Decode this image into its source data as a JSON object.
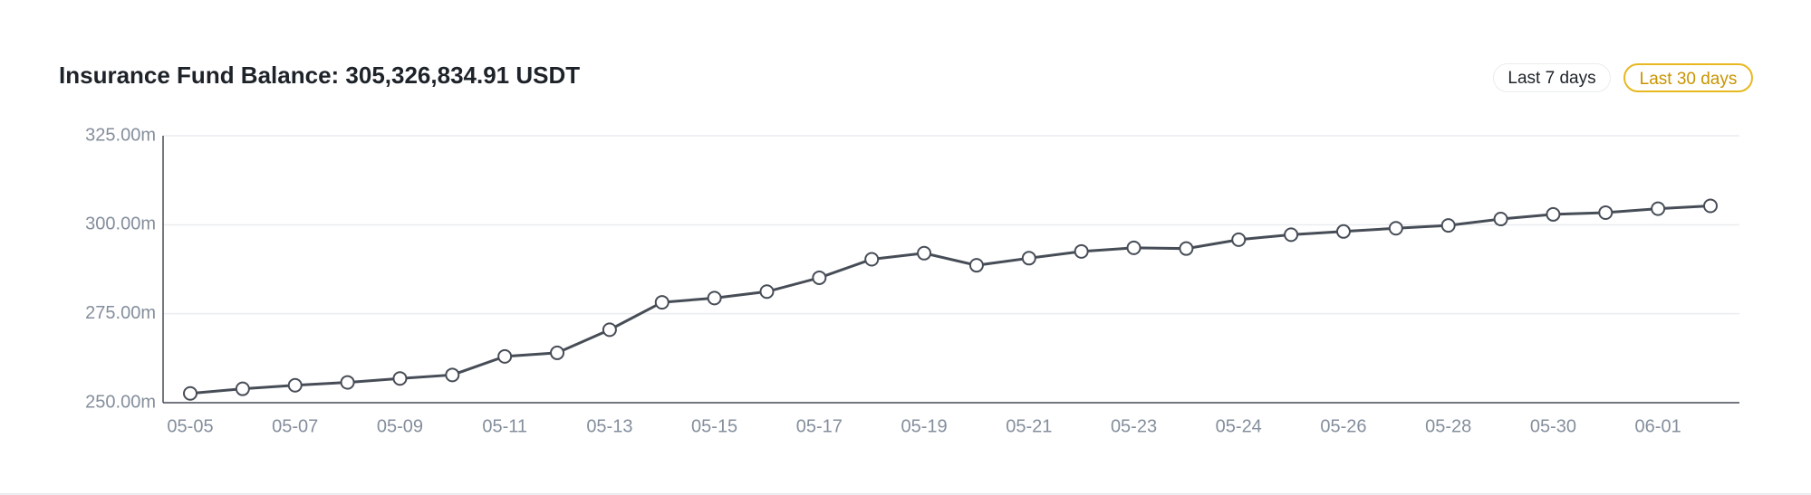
{
  "chart_data": {
    "type": "line",
    "title": "Insurance Fund Balance: 305,326,834.91 USDT",
    "categories": [
      "05-05",
      null,
      "05-07",
      null,
      "05-09",
      null,
      "05-11",
      null,
      "05-13",
      null,
      "05-15",
      null,
      "05-17",
      null,
      "05-19",
      null,
      "05-21",
      null,
      "05-23",
      null,
      "05-24",
      null,
      "05-26",
      null,
      "05-28",
      null,
      "05-30",
      null,
      "06-01",
      null
    ],
    "series": [
      {
        "name": "Insurance Fund Balance",
        "color": "#474d57",
        "values": [
          252.6,
          253.9,
          254.9,
          255.7,
          256.8,
          257.8,
          263.0,
          264.0,
          270.5,
          278.2,
          279.4,
          281.2,
          285.1,
          290.3,
          292.0,
          288.6,
          290.6,
          292.5,
          293.5,
          293.3,
          295.8,
          297.2,
          298.1,
          299.0,
          299.8,
          301.6,
          302.9,
          303.4,
          304.5,
          305.3
        ]
      }
    ],
    "ylim": [
      250,
      325
    ],
    "yticks": [
      {
        "value": 250,
        "label": "250.00m"
      },
      {
        "value": 275,
        "label": "275.00m"
      },
      {
        "value": 300,
        "label": "300.00m"
      },
      {
        "value": 325,
        "label": "325.00m"
      }
    ],
    "grid": true
  },
  "controls": [
    "Last 7 days",
    "Last 30 days"
  ]
}
